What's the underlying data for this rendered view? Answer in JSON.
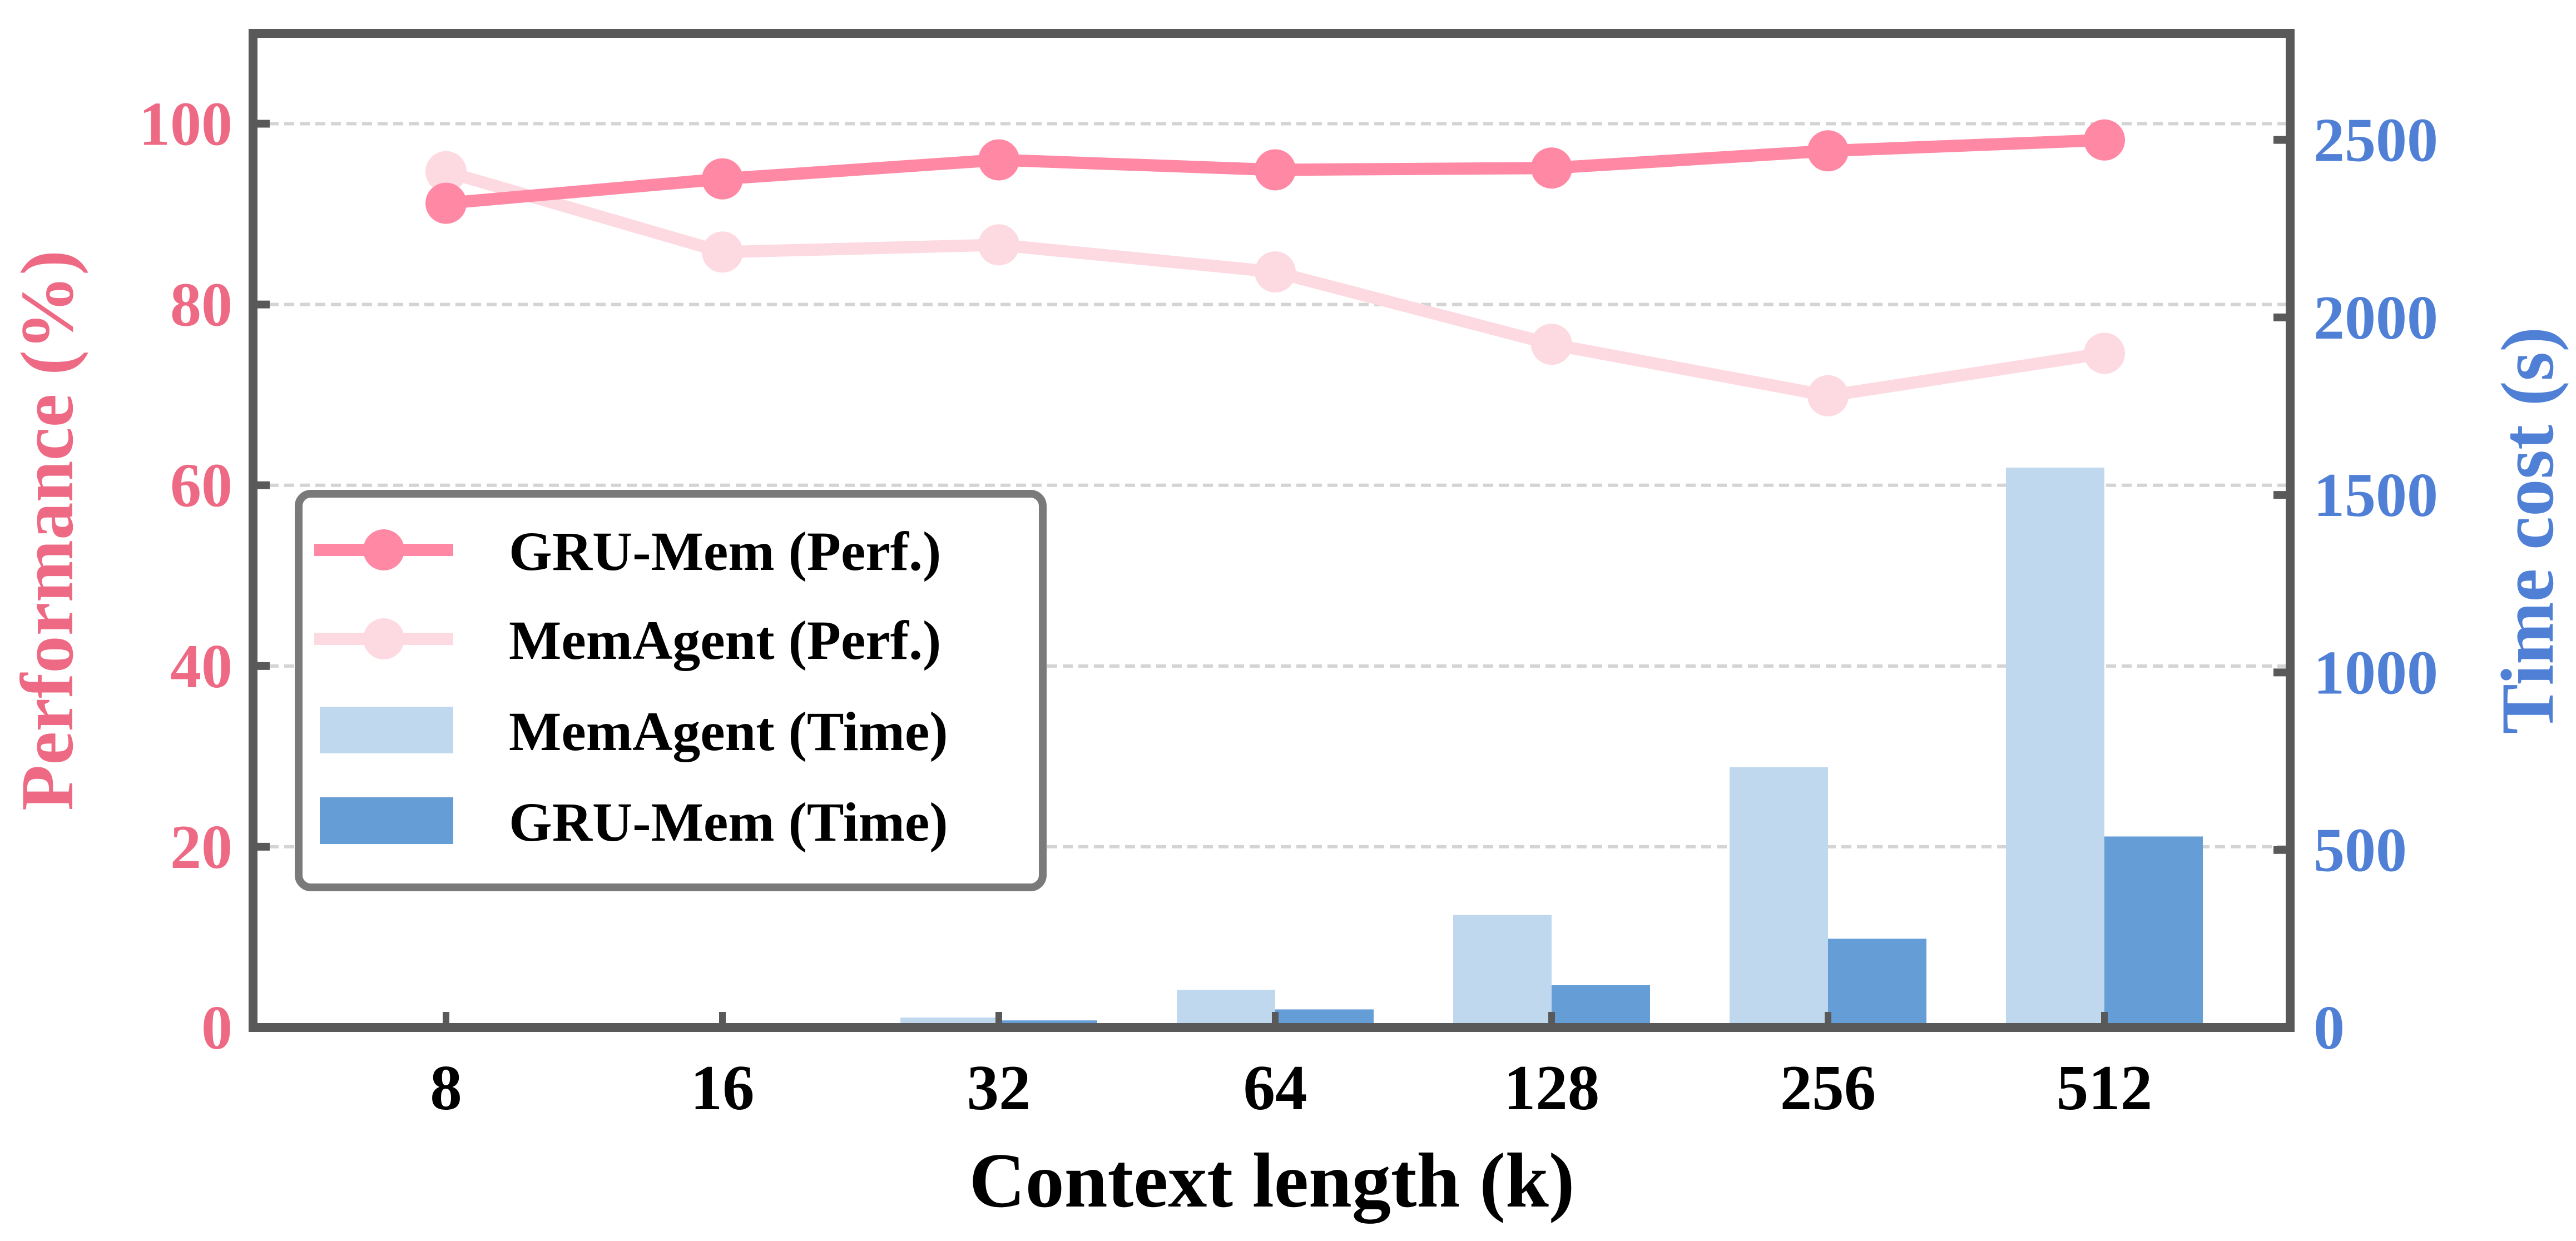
{
  "chart_data": {
    "type": "bar+line",
    "xlabel": "Context length (k)",
    "ylabel_left": "Performance (%)",
    "ylabel_right": "Time cost (s)",
    "categories": [
      "8",
      "16",
      "32",
      "64",
      "128",
      "256",
      "512"
    ],
    "ylim_left": [
      0,
      110
    ],
    "ylim_right": [
      0,
      2800
    ],
    "yticks_left": [
      0,
      20,
      40,
      60,
      80,
      100
    ],
    "yticks_right": [
      0,
      500,
      1000,
      1500,
      2000,
      2500
    ],
    "grid": "horizontal dashed",
    "legend_placement": "center-left",
    "series": [
      {
        "name": "GRU-Mem (Perf.)",
        "type": "line",
        "axis": "left",
        "color": "#FF88A4",
        "values": [
          91.2,
          93.9,
          96.0,
          94.9,
          95.1,
          97.0,
          98.2
        ]
      },
      {
        "name": "MemAgent (Perf.)",
        "type": "line",
        "axis": "left",
        "color": "#FDD9E1",
        "values": [
          94.7,
          85.8,
          86.6,
          83.6,
          75.6,
          69.9,
          74.6
        ]
      },
      {
        "name": "MemAgent (Time)",
        "type": "bar",
        "axis": "right",
        "color": "#C0D8EE",
        "values": [
          1,
          4,
          28,
          106,
          317,
          733,
          1577
        ]
      },
      {
        "name": "GRU-Mem (Time)",
        "type": "bar",
        "axis": "right",
        "color": "#659DD6",
        "values": [
          1,
          6,
          20,
          51,
          119,
          250,
          538
        ]
      }
    ],
    "colors": {
      "left_axis": "#EE6A84",
      "right_axis": "#4F80D6",
      "frame": "#595959"
    }
  }
}
